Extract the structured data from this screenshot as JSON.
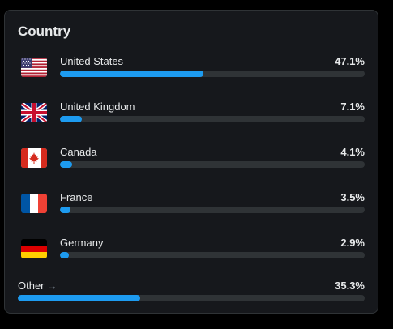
{
  "card": {
    "title": "Country"
  },
  "countries": [
    {
      "name": "United States",
      "percent_label": "47.1%",
      "fraction": 0.471,
      "flag": "us-flag-icon"
    },
    {
      "name": "United Kingdom",
      "percent_label": "7.1%",
      "fraction": 0.071,
      "flag": "uk-flag-icon"
    },
    {
      "name": "Canada",
      "percent_label": "4.1%",
      "fraction": 0.041,
      "flag": "canada-flag-icon"
    },
    {
      "name": "France",
      "percent_label": "3.5%",
      "fraction": 0.035,
      "flag": "france-flag-icon"
    },
    {
      "name": "Germany",
      "percent_label": "2.9%",
      "fraction": 0.029,
      "flag": "germany-flag-icon"
    }
  ],
  "other": {
    "label": "Other",
    "arrow": "→",
    "percent_label": "35.3%",
    "fraction": 0.353
  },
  "colors": {
    "bar_fill": "#1d9bf0",
    "bar_track": "#2f3336",
    "card_bg": "#16181c",
    "text": "#e7e9ea"
  }
}
